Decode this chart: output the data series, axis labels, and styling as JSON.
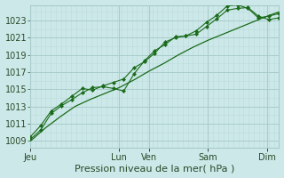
{
  "bg_color": "#cce8e8",
  "grid_color_major": "#aacccc",
  "grid_color_minor": "#bbdddd",
  "line_color": "#1a6b1a",
  "marker_color": "#1a6b1a",
  "xlabel": "Pression niveau de la mer( hPa )",
  "xlabel_fontsize": 8,
  "yticks": [
    1009,
    1011,
    1013,
    1015,
    1017,
    1019,
    1021,
    1023
  ],
  "ylim": [
    1008.2,
    1024.8
  ],
  "xtick_labels": [
    "Jeu",
    "",
    "Lun",
    "Ven",
    "",
    "Sam",
    "",
    "Dim"
  ],
  "xtick_positions": [
    0,
    1.5,
    3,
    4,
    5,
    6,
    7,
    8
  ],
  "xlim": [
    0,
    8.4
  ],
  "vline_positions": [
    0,
    3,
    4,
    6,
    8
  ],
  "num_minor_v": 50,
  "line1_x": [
    0.0,
    0.35,
    0.7,
    1.05,
    1.4,
    1.75,
    2.1,
    2.45,
    2.8,
    3.15,
    3.5,
    3.85,
    4.2,
    4.55,
    4.9,
    5.25,
    5.6,
    5.95,
    6.3,
    6.65,
    7.0,
    7.35,
    7.7,
    8.05,
    8.4
  ],
  "line1_y": [
    1009.2,
    1010.3,
    1012.2,
    1013.1,
    1013.8,
    1014.6,
    1015.2,
    1015.3,
    1015.1,
    1014.8,
    1016.8,
    1018.3,
    1019.5,
    1020.2,
    1021.1,
    1021.2,
    1021.4,
    1022.3,
    1023.2,
    1024.2,
    1024.4,
    1024.5,
    1023.5,
    1023.1,
    1023.3
  ],
  "line2_x": [
    0.0,
    0.35,
    0.7,
    1.05,
    1.4,
    1.75,
    2.1,
    2.45,
    2.8,
    3.15,
    3.5,
    3.85,
    4.2,
    4.55,
    4.9,
    5.25,
    5.6,
    5.95,
    6.3,
    6.65,
    7.0,
    7.35,
    7.7,
    8.05,
    8.4
  ],
  "line2_y": [
    1009.5,
    1010.8,
    1012.5,
    1013.3,
    1014.2,
    1015.1,
    1014.9,
    1015.4,
    1015.8,
    1016.2,
    1017.5,
    1018.2,
    1019.2,
    1020.5,
    1021.0,
    1021.2,
    1021.8,
    1022.8,
    1023.6,
    1024.7,
    1024.8,
    1024.4,
    1023.3,
    1023.5,
    1023.8
  ],
  "line3_x": [
    0.0,
    0.5,
    1.0,
    1.5,
    2.0,
    2.5,
    3.0,
    3.5,
    4.0,
    4.5,
    5.0,
    5.5,
    6.0,
    6.5,
    7.0,
    7.5,
    8.0,
    8.4
  ],
  "line3_y": [
    1009.0,
    1010.5,
    1011.8,
    1013.0,
    1013.8,
    1014.5,
    1015.2,
    1016.1,
    1017.1,
    1018.0,
    1019.0,
    1019.9,
    1020.7,
    1021.4,
    1022.1,
    1022.8,
    1023.5,
    1024.0
  ],
  "tick_fontsize": 7,
  "tick_color": "#2a4a2a"
}
